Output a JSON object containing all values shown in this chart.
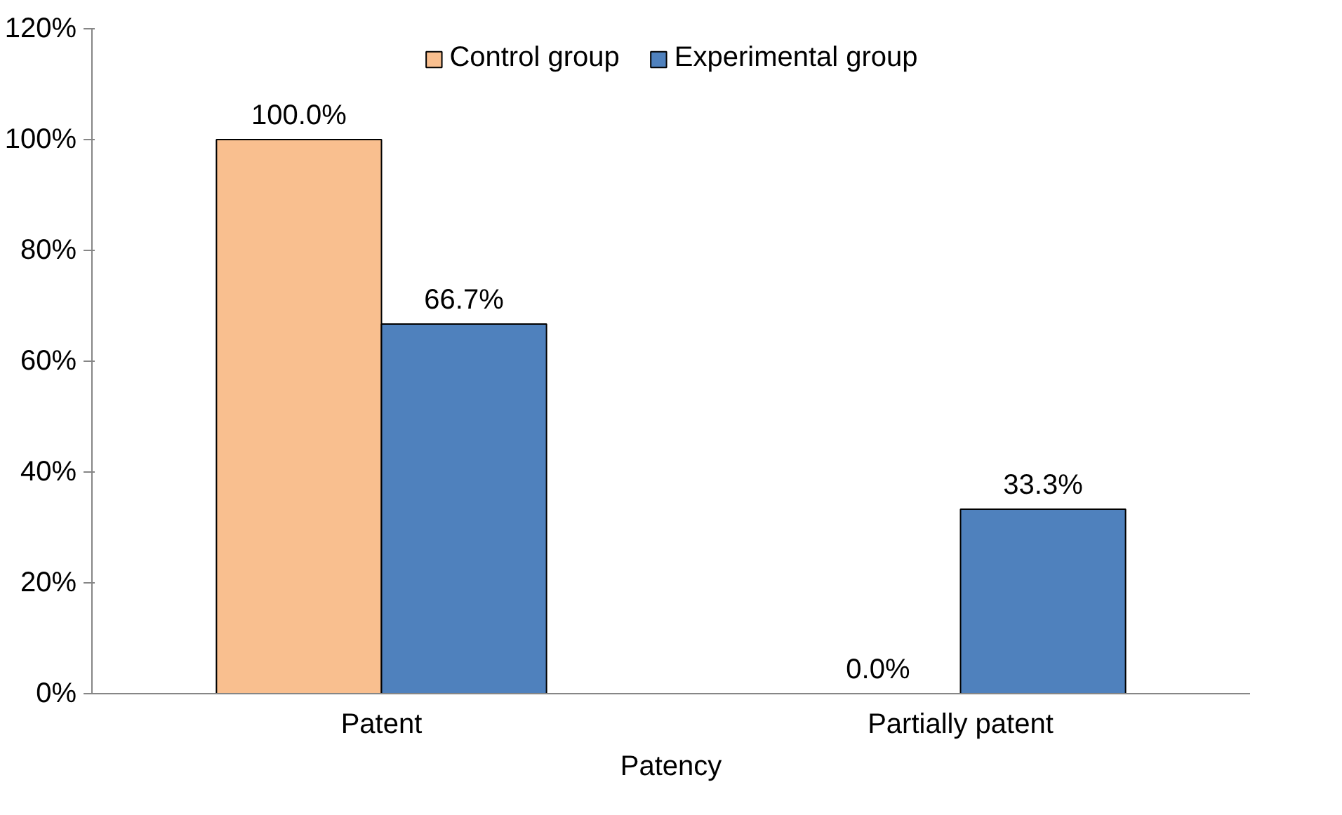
{
  "chart_data": {
    "type": "bar",
    "xlabel": "Patency",
    "categories": [
      "Patent",
      "Partially patent"
    ],
    "series": [
      {
        "name": "Control group",
        "color": "#f9bf8f",
        "values": [
          100,
          0
        ],
        "value_labels": [
          "100.0%",
          "0.0%"
        ]
      },
      {
        "name": "Experimental group",
        "color": "#4f81bd",
        "values": [
          66.7,
          33.3
        ],
        "value_labels": [
          "66.7%",
          "33.3%"
        ]
      }
    ],
    "ylim": [
      0,
      120
    ],
    "yticks": [
      {
        "value": 0,
        "label": "0%"
      },
      {
        "value": 20,
        "label": "20%"
      },
      {
        "value": 40,
        "label": "40%"
      },
      {
        "value": 60,
        "label": "60%"
      },
      {
        "value": 80,
        "label": "80%"
      },
      {
        "value": 100,
        "label": "100%"
      },
      {
        "value": 120,
        "label": "120%"
      }
    ],
    "grid": false,
    "legend": "top"
  }
}
